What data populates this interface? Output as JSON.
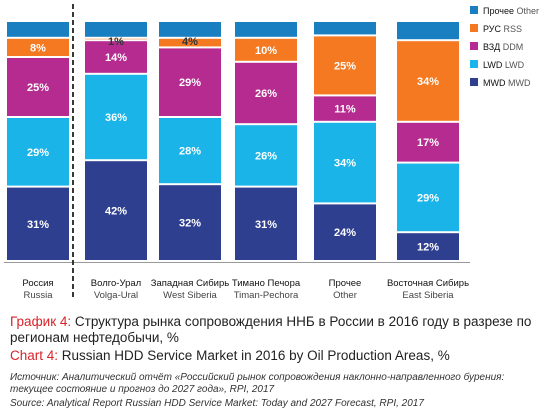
{
  "chart_data": {
    "type": "bar",
    "stacked": true,
    "normalized_percent": true,
    "categories": [
      {
        "ru": "Россия",
        "en": "Russia"
      },
      {
        "ru": "Волго-Урал",
        "en": "Volga-Ural"
      },
      {
        "ru": "Западная Сибирь",
        "en": "West Siberia"
      },
      {
        "ru": "Тимано Печора",
        "en": "Timan-Pechora"
      },
      {
        "ru": "Прочее",
        "en": "Other"
      },
      {
        "ru": "Восточная Сибирь",
        "en": "East Siberia"
      }
    ],
    "series": [
      {
        "name_ru": "MWD",
        "name_en": "MWD",
        "color": "#2e3f8f",
        "values": [
          31,
          42,
          32,
          31,
          24,
          12
        ],
        "labels": [
          "31%",
          "42%",
          "32%",
          "31%",
          "24%",
          "12%"
        ]
      },
      {
        "name_ru": "LWD",
        "name_en": "LWD",
        "color": "#1ab4e8",
        "values": [
          29,
          36,
          28,
          26,
          34,
          29
        ],
        "labels": [
          "29%",
          "36%",
          "28%",
          "26%",
          "34%",
          "29%"
        ]
      },
      {
        "name_ru": "ВЗД",
        "name_en": "DDM",
        "color": "#b62b8f",
        "values": [
          25,
          14,
          29,
          26,
          11,
          17
        ],
        "labels": [
          "25%",
          "14%",
          "29%",
          "26%",
          "11%",
          "17%"
        ]
      },
      {
        "name_ru": "РУС",
        "name_en": "RSS",
        "color": "#f47920",
        "values": [
          8,
          1,
          4,
          10,
          25,
          34
        ],
        "labels": [
          "8%",
          "1%",
          "4%",
          "10%",
          "25%",
          "34%"
        ]
      },
      {
        "name_ru": "Прочее",
        "name_en": "Other",
        "color": "#1a7fc1",
        "values": [
          7,
          7,
          7,
          7,
          6,
          8
        ],
        "labels": [
          "",
          "",
          "",
          "",
          "",
          ""
        ]
      }
    ],
    "legend_position": "right",
    "separator_after_category": 0,
    "ylim": [
      0,
      100
    ]
  },
  "caption": {
    "ru_prefix": "График 4:",
    "ru_text": " Структура рынка сопровождения ННБ в России в 2016 году в разрезе по регионам нефтедобычи, %",
    "en_prefix": "Chart 4:",
    "en_text": " Russian HDD Service Market in 2016 by Oil Production Areas, %"
  },
  "source": {
    "ru": "Источник: Аналитический отчёт «Российский рынок сопровождения наклонно-направленного бурения: текущее состояние и прогноз до 2027 года», RPI, 2017",
    "en": "Source: Analytical Report Russian HDD Service Market:  Today and 2027 Forecast, RPI, 2017"
  }
}
